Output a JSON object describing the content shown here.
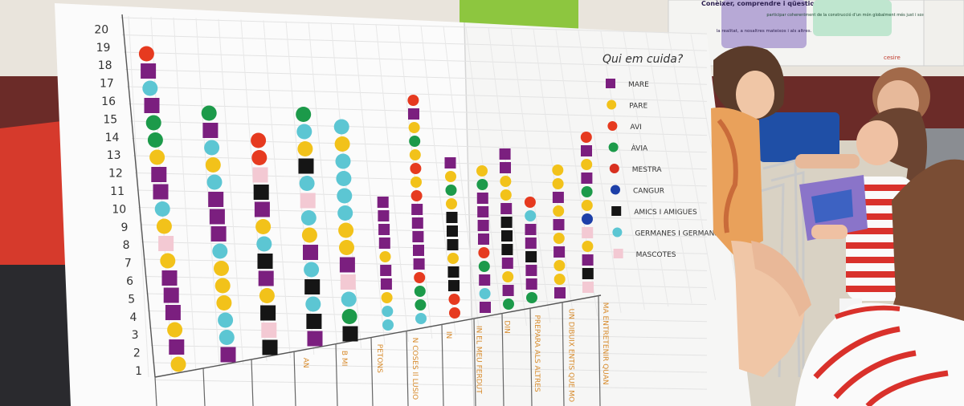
{
  "poster": {
    "legend_title": "Qui em cuida?",
    "legend": [
      {
        "label": "MARE",
        "color": "#7b1f7f",
        "shape": "square"
      },
      {
        "label": "PARE",
        "color": "#f2c21a",
        "shape": "circle"
      },
      {
        "label": "AVI",
        "color": "#e63a1f",
        "shape": "circle"
      },
      {
        "label": "ÀVIA",
        "color": "#1c9a4a",
        "shape": "circle"
      },
      {
        "label": "MESTRA",
        "color": "#d8301f",
        "shape": "circle"
      },
      {
        "label": "CANGUR",
        "color": "#1d3fa8",
        "shape": "circle"
      },
      {
        "label": "AMICS I AMIGUES",
        "color": "#151515",
        "shape": "square"
      },
      {
        "label": "GERMANES I GERMANS",
        "color": "#5cc6d3",
        "shape": "circle"
      },
      {
        "label": "MASCOTES",
        "color": "#f3c9d3",
        "shape": "square"
      }
    ],
    "y_ticks": [
      "1",
      "2",
      "3",
      "4",
      "5",
      "6",
      "7",
      "8",
      "9",
      "10",
      "11",
      "12",
      "13",
      "14",
      "15",
      "16",
      "17",
      "18",
      "19",
      "20"
    ],
    "column_labels": [
      "",
      "",
      "",
      "AN",
      "B MI",
      "PETONS",
      "N COSES  Il LUSIO",
      "IN",
      "IN EL MEU  FERDUT",
      "DIN",
      "PREPARA ALS ALTRES",
      "UN DIBUIX  ENTIS QUE MO",
      "MA ENTRETENIR QUAN"
    ]
  },
  "wall_sign": {
    "heading": "Conèixer, comprendre i qüestionar",
    "subtext": "la realitat, a nosaltres mateixos i als altres.",
    "right_text": "participar coherentment de la construcció d'un món globalment més just i sostenible",
    "logo_text": "cesire"
  }
}
